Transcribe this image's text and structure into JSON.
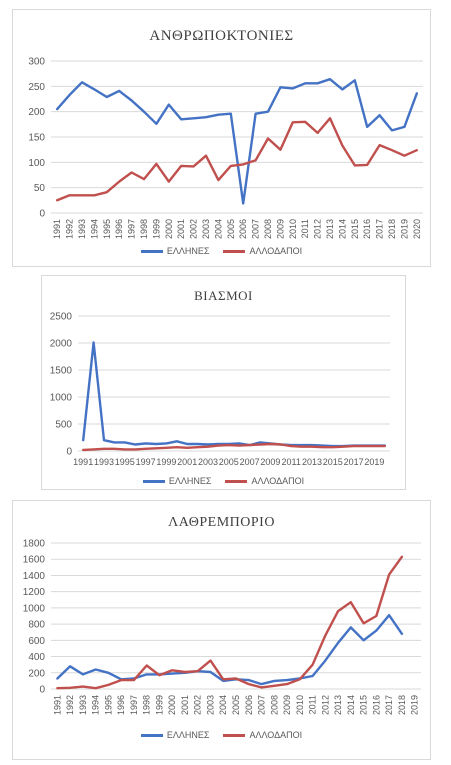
{
  "colors": {
    "greeks": "#4472c4",
    "foreigners": "#c0504d"
  },
  "chart_data": [
    {
      "type": "line",
      "title": "ΑΝΘΡΩΠΟΚΤΟΝΙΕΣ",
      "x": [
        "1991",
        "1992",
        "1993",
        "1994",
        "1995",
        "1996",
        "1997",
        "1998",
        "1999",
        "2000",
        "2001",
        "2002",
        "2003",
        "2004",
        "2005",
        "2006",
        "2007",
        "2008",
        "2009",
        "2010",
        "2011",
        "2012",
        "2013",
        "2014",
        "2015",
        "2016",
        "2017",
        "2018",
        "2019",
        "2020"
      ],
      "yticks": [
        "0",
        "50",
        "100",
        "150",
        "200",
        "250",
        "300"
      ],
      "ylim": [
        0,
        300
      ],
      "series": [
        {
          "name": "ΕΛΛΗΝΕΣ",
          "color": "#4472c4",
          "values": [
            205,
            233,
            258,
            244,
            229,
            241,
            222,
            200,
            176,
            214,
            185,
            187,
            189,
            194,
            196,
            19,
            196,
            200,
            248,
            246,
            256,
            256,
            264,
            244,
            262,
            170,
            193,
            163,
            170,
            236
          ]
        },
        {
          "name": "ΑΛΛΟΔΑΠΟΙ",
          "color": "#c0504d",
          "values": [
            25,
            35,
            35,
            35,
            41,
            62,
            80,
            67,
            97,
            62,
            93,
            92,
            113,
            65,
            93,
            96,
            104,
            147,
            125,
            179,
            180,
            158,
            187,
            133,
            94,
            95,
            134,
            124,
            113,
            124
          ]
        }
      ],
      "grid": true,
      "legend": "bottom"
    },
    {
      "type": "line",
      "title": "ΒΙΑΣΜΟΙ",
      "x": [
        "1991",
        "1992",
        "1993",
        "1994",
        "1995",
        "1996",
        "1997",
        "1998",
        "1999",
        "2000",
        "2001",
        "2002",
        "2003",
        "2004",
        "2005",
        "2006",
        "2007",
        "2008",
        "2009",
        "2010",
        "2011",
        "2012",
        "2013",
        "2014",
        "2015",
        "2016",
        "2017",
        "2018",
        "2019",
        "2020"
      ],
      "xtick_labels": [
        "1991",
        "1993",
        "1995",
        "1997",
        "1999",
        "2001",
        "2003",
        "2005",
        "2007",
        "2009",
        "2011",
        "2013",
        "2015",
        "2017",
        "2019"
      ],
      "yticks": [
        "0",
        "500",
        "1000",
        "1500",
        "2000",
        "2500"
      ],
      "ylim": [
        0,
        2500
      ],
      "series": [
        {
          "name": "ΕΛΛΗΝΕΣ",
          "color": "#4472c4",
          "values": [
            200,
            2010,
            200,
            160,
            160,
            120,
            140,
            130,
            140,
            180,
            130,
            130,
            120,
            130,
            130,
            140,
            110,
            160,
            140,
            120,
            110,
            110,
            110,
            100,
            90,
            90,
            100,
            100,
            100,
            100
          ]
        },
        {
          "name": "ΑΛΛΟΔΑΠΟΙ",
          "color": "#c0504d",
          "values": [
            20,
            30,
            40,
            40,
            30,
            30,
            40,
            50,
            60,
            70,
            60,
            70,
            80,
            100,
            110,
            100,
            110,
            120,
            130,
            120,
            90,
            80,
            80,
            70,
            70,
            80,
            90,
            90,
            90,
            90
          ]
        }
      ],
      "grid": true,
      "legend": "bottom"
    },
    {
      "type": "line",
      "title": "ΛΑΘΡΕΜΠΟΡΙΟ",
      "x": [
        "1991",
        "1992",
        "1993",
        "1994",
        "1995",
        "1996",
        "1997",
        "1998",
        "1999",
        "2000",
        "2001",
        "2002",
        "2003",
        "2004",
        "2005",
        "2006",
        "2007",
        "2008",
        "2009",
        "2010",
        "2011",
        "2012",
        "2013",
        "2014",
        "2015",
        "2016",
        "2017",
        "2018",
        "2019"
      ],
      "yticks": [
        "0",
        "200",
        "400",
        "600",
        "800",
        "1000",
        "1200",
        "1400",
        "1600",
        "1800"
      ],
      "ylim": [
        0,
        1800
      ],
      "series": [
        {
          "name": "ΕΛΛΗΝΕΣ",
          "color": "#4472c4",
          "values": [
            130,
            280,
            180,
            240,
            200,
            120,
            130,
            180,
            180,
            190,
            200,
            220,
            210,
            100,
            120,
            110,
            60,
            100,
            110,
            130,
            160,
            350,
            570,
            760,
            600,
            720,
            910,
            680,
            null
          ]
        },
        {
          "name": "ΑΛΛΟΔΑΠΟΙ",
          "color": "#c0504d",
          "values": [
            10,
            15,
            30,
            10,
            50,
            110,
            110,
            290,
            170,
            230,
            210,
            220,
            350,
            120,
            130,
            60,
            20,
            40,
            60,
            120,
            300,
            660,
            960,
            1070,
            810,
            900,
            1410,
            1630,
            null
          ]
        }
      ],
      "grid": true,
      "legend": "bottom"
    }
  ]
}
